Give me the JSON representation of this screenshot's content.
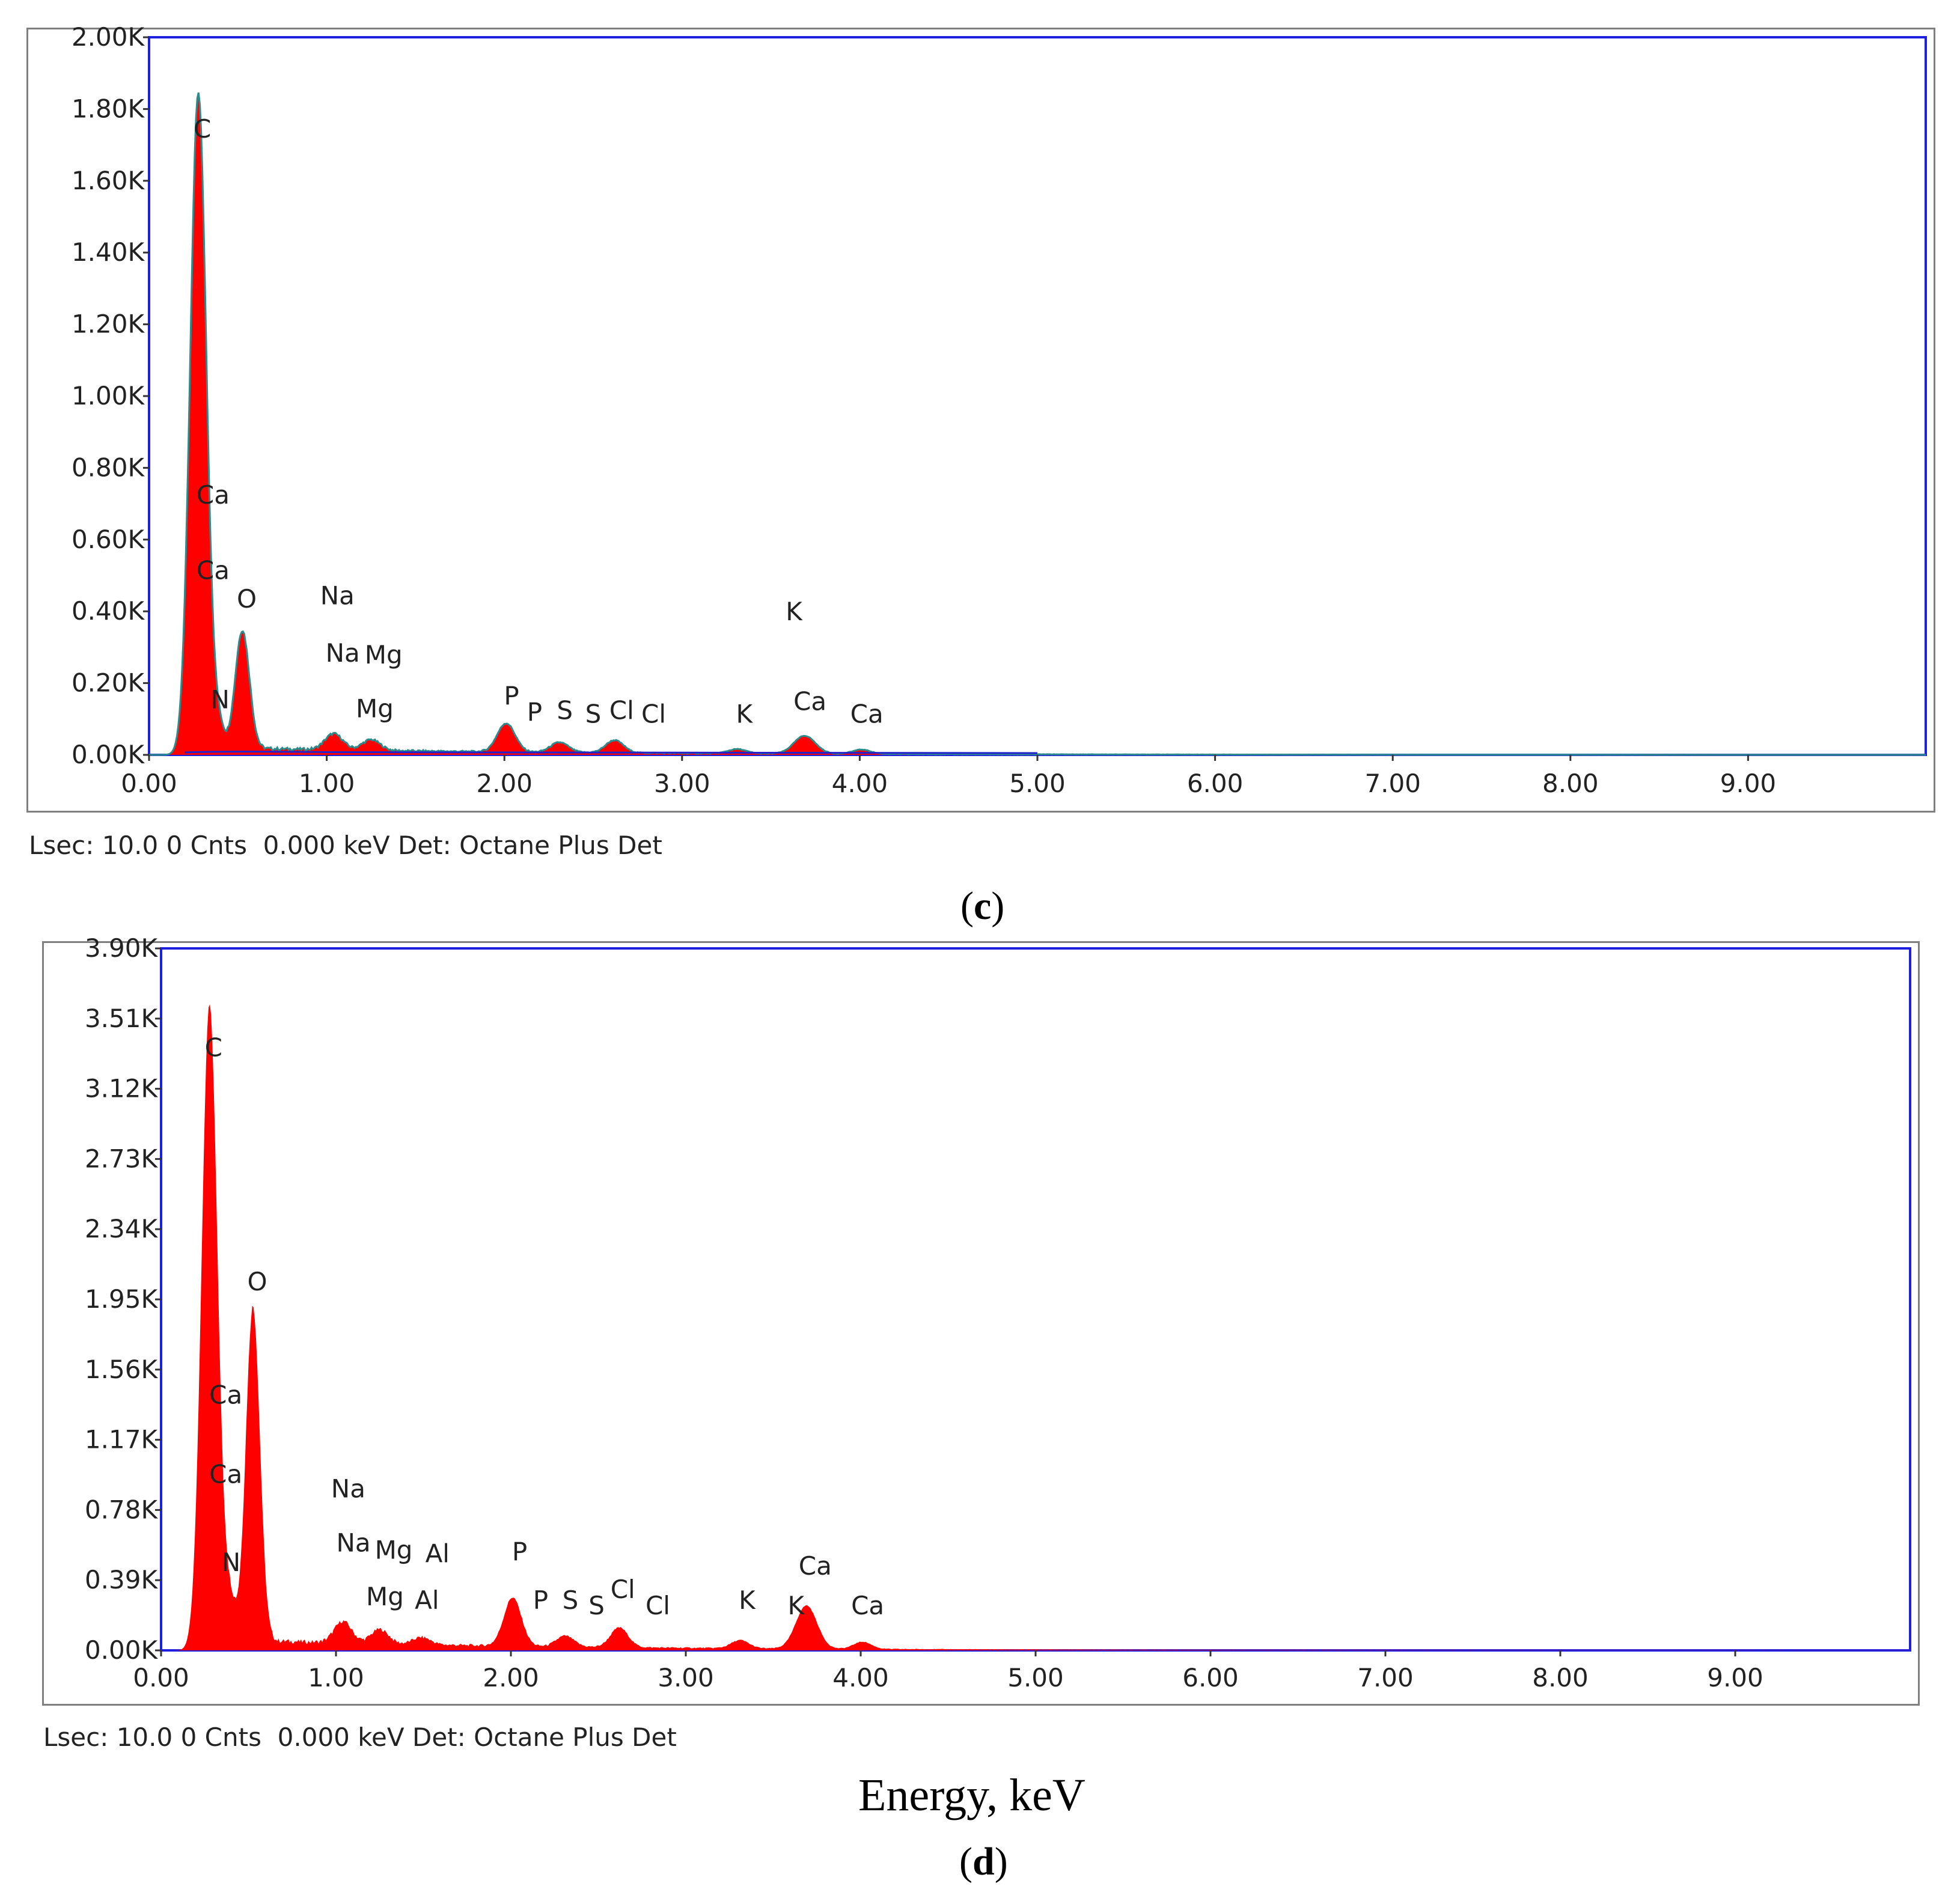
{
  "figure": {
    "x_axis_title": "Energy, keV",
    "label_d_open": "(",
    "label_d_letter": "d",
    "label_d_close": ")",
    "label_c_open": "(",
    "label_c_letter": "c",
    "label_c_close": ")"
  },
  "colors": {
    "spectrum_fill": "#ff0000",
    "frame_border": "#1f1fe0",
    "outline_teal": "#2e8b8b",
    "background_fit": "#2222cc",
    "label_box": "#f3c6c6"
  },
  "panels": [
    {
      "id": "c",
      "status": "Lsec: 10.0 0 Cnts  0.000 keV Det: Octane Plus Det"
    },
    {
      "id": "d",
      "status": "Lsec: 10.0 0 Cnts  0.000 keV Det: Octane Plus Det"
    }
  ],
  "chart_data": [
    {
      "type": "area",
      "panel": "c",
      "xlim": [
        0,
        10
      ],
      "ylim": [
        0,
        2000
      ],
      "x_ticks": [
        "0.00",
        "1.00",
        "2.00",
        "3.00",
        "4.00",
        "5.00",
        "6.00",
        "7.00",
        "8.00",
        "9.00"
      ],
      "y_ticks": [
        "0.00K",
        "0.20K",
        "0.40K",
        "0.60K",
        "0.80K",
        "1.00K",
        "1.20K",
        "1.40K",
        "1.60K",
        "1.80K",
        "2.00K"
      ],
      "background_level": 18,
      "peaks": [
        {
          "x": 0.277,
          "y": 1830,
          "w": 0.045
        },
        {
          "x": 0.392,
          "y": 60,
          "w": 0.03
        },
        {
          "x": 0.525,
          "y": 330,
          "w": 0.04
        },
        {
          "x": 1.04,
          "y": 45,
          "w": 0.05
        },
        {
          "x": 1.25,
          "y": 30,
          "w": 0.05
        },
        {
          "x": 2.01,
          "y": 80,
          "w": 0.05
        },
        {
          "x": 2.31,
          "y": 28,
          "w": 0.05
        },
        {
          "x": 2.62,
          "y": 35,
          "w": 0.05
        },
        {
          "x": 3.31,
          "y": 12,
          "w": 0.05
        },
        {
          "x": 3.69,
          "y": 50,
          "w": 0.06
        },
        {
          "x": 4.01,
          "y": 12,
          "w": 0.05
        }
      ],
      "element_labels": [
        {
          "text": "C",
          "x": 0.3,
          "y": 1720
        },
        {
          "text": "Ca",
          "x": 0.36,
          "y": 700
        },
        {
          "text": "Ca",
          "x": 0.36,
          "y": 490
        },
        {
          "text": "O",
          "x": 0.55,
          "y": 410
        },
        {
          "text": "N",
          "x": 0.4,
          "y": 130
        },
        {
          "text": "Na",
          "x": 1.06,
          "y": 420
        },
        {
          "text": "Na",
          "x": 1.09,
          "y": 260
        },
        {
          "text": "Mg",
          "x": 1.32,
          "y": 255
        },
        {
          "text": "Mg",
          "x": 1.27,
          "y": 105
        },
        {
          "text": "P",
          "x": 2.04,
          "y": 140
        },
        {
          "text": "P",
          "x": 2.17,
          "y": 95
        },
        {
          "text": "S",
          "x": 2.34,
          "y": 100
        },
        {
          "text": "S",
          "x": 2.5,
          "y": 90
        },
        {
          "text": "Cl",
          "x": 2.66,
          "y": 100
        },
        {
          "text": "Cl",
          "x": 2.84,
          "y": 90
        },
        {
          "text": "K",
          "x": 3.35,
          "y": 90
        },
        {
          "text": "K",
          "x": 3.63,
          "y": 375
        },
        {
          "text": "Ca",
          "x": 3.72,
          "y": 125
        },
        {
          "text": "Ca",
          "x": 4.04,
          "y": 90
        }
      ]
    },
    {
      "type": "area",
      "panel": "d",
      "xlim": [
        0,
        10
      ],
      "ylim": [
        0,
        3900
      ],
      "x_ticks": [
        "0.00",
        "1.00",
        "2.00",
        "3.00",
        "4.00",
        "5.00",
        "6.00",
        "7.00",
        "8.00",
        "9.00"
      ],
      "y_ticks": [
        "0.00K",
        "0.39K",
        "0.78K",
        "1.17K",
        "1.56K",
        "1.95K",
        "2.34K",
        "2.73K",
        "3.12K",
        "3.51K",
        "3.90K"
      ],
      "background_level": 55,
      "peaks": [
        {
          "x": 0.277,
          "y": 3550,
          "w": 0.045
        },
        {
          "x": 0.392,
          "y": 220,
          "w": 0.035
        },
        {
          "x": 0.525,
          "y": 1860,
          "w": 0.04
        },
        {
          "x": 1.04,
          "y": 120,
          "w": 0.05
        },
        {
          "x": 1.25,
          "y": 80,
          "w": 0.05
        },
        {
          "x": 1.49,
          "y": 40,
          "w": 0.05
        },
        {
          "x": 2.01,
          "y": 270,
          "w": 0.05
        },
        {
          "x": 2.31,
          "y": 60,
          "w": 0.05
        },
        {
          "x": 2.62,
          "y": 110,
          "w": 0.05
        },
        {
          "x": 3.31,
          "y": 45,
          "w": 0.05
        },
        {
          "x": 3.69,
          "y": 240,
          "w": 0.06
        },
        {
          "x": 4.01,
          "y": 40,
          "w": 0.05
        }
      ],
      "element_labels": [
        {
          "text": "C",
          "x": 0.3,
          "y": 3300
        },
        {
          "text": "O",
          "x": 0.55,
          "y": 2000
        },
        {
          "text": "Ca",
          "x": 0.37,
          "y": 1370
        },
        {
          "text": "Ca",
          "x": 0.37,
          "y": 930
        },
        {
          "text": "N",
          "x": 0.4,
          "y": 440
        },
        {
          "text": "Na",
          "x": 1.07,
          "y": 850
        },
        {
          "text": "Na",
          "x": 1.1,
          "y": 550
        },
        {
          "text": "Mg",
          "x": 1.33,
          "y": 510
        },
        {
          "text": "Al",
          "x": 1.58,
          "y": 490
        },
        {
          "text": "Mg",
          "x": 1.28,
          "y": 250
        },
        {
          "text": "Al",
          "x": 1.52,
          "y": 230
        },
        {
          "text": "P",
          "x": 2.05,
          "y": 500
        },
        {
          "text": "P",
          "x": 2.17,
          "y": 230
        },
        {
          "text": "S",
          "x": 2.34,
          "y": 230
        },
        {
          "text": "S",
          "x": 2.49,
          "y": 200
        },
        {
          "text": "Cl",
          "x": 2.64,
          "y": 290
        },
        {
          "text": "Cl",
          "x": 2.84,
          "y": 200
        },
        {
          "text": "K",
          "x": 3.35,
          "y": 230
        },
        {
          "text": "K",
          "x": 3.63,
          "y": 200
        },
        {
          "text": "Ca",
          "x": 3.74,
          "y": 420
        },
        {
          "text": "Ca",
          "x": 4.04,
          "y": 200
        }
      ]
    }
  ]
}
